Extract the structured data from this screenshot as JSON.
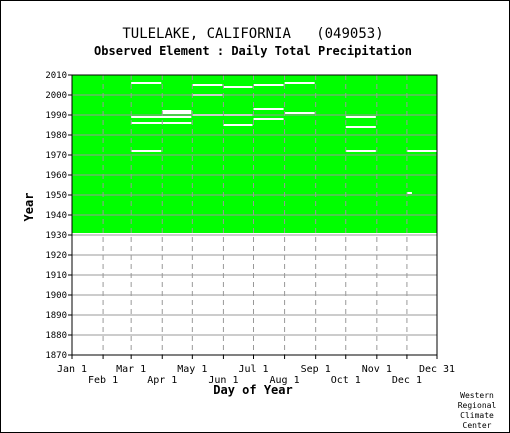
{
  "chart_data": {
    "type": "heatmap",
    "title": "TULELAKE, CALIFORNIA   (049053)",
    "subtitle": "Observed Element : Daily Total Precipitation",
    "xlabel": "Day of Year",
    "ylabel": "Year",
    "xlim": [
      1,
      365
    ],
    "ylim": [
      1870,
      2010
    ],
    "x_ticks_top_row": [
      {
        "label": "Jan 1",
        "day": 1
      },
      {
        "label": "Mar 1",
        "day": 60
      },
      {
        "label": "May 1",
        "day": 121
      },
      {
        "label": "Jul 1",
        "day": 182
      },
      {
        "label": "Sep 1",
        "day": 244
      },
      {
        "label": "Nov 1",
        "day": 305
      },
      {
        "label": "Dec 31",
        "day": 365
      }
    ],
    "x_ticks_bottom_row": [
      {
        "label": "Feb 1",
        "day": 32
      },
      {
        "label": "Apr 1",
        "day": 91
      },
      {
        "label": "Jun 1",
        "day": 152
      },
      {
        "label": "Aug 1",
        "day": 213
      },
      {
        "label": "Oct 1",
        "day": 274
      },
      {
        "label": "Dec 1",
        "day": 335
      }
    ],
    "y_ticks": [
      1870,
      1880,
      1890,
      1900,
      1910,
      1920,
      1930,
      1940,
      1950,
      1960,
      1970,
      1980,
      1990,
      2000,
      2010
    ],
    "grid": true,
    "data_color": "#00ff00",
    "missing_color": "#ffffff",
    "coverage": {
      "start_year": 1931,
      "end_year": 2010
    },
    "missing_segments": [
      {
        "year": 2006,
        "start_day": 60,
        "end_day": 90
      },
      {
        "year": 2005,
        "start_day": 121,
        "end_day": 151
      },
      {
        "year": 2004,
        "start_day": 152,
        "end_day": 181
      },
      {
        "year": 2005,
        "start_day": 182,
        "end_day": 212
      },
      {
        "year": 2006,
        "start_day": 213,
        "end_day": 243
      },
      {
        "year": 2000,
        "start_day": 121,
        "end_day": 151
      },
      {
        "year": 1993,
        "start_day": 182,
        "end_day": 212
      },
      {
        "year": 1992,
        "start_day": 91,
        "end_day": 120
      },
      {
        "year": 1991,
        "start_day": 91,
        "end_day": 120
      },
      {
        "year": 1991,
        "start_day": 213,
        "end_day": 243
      },
      {
        "year": 1990,
        "start_day": 121,
        "end_day": 181
      },
      {
        "year": 1989,
        "start_day": 60,
        "end_day": 120
      },
      {
        "year": 1989,
        "start_day": 274,
        "end_day": 304
      },
      {
        "year": 1988,
        "start_day": 182,
        "end_day": 212
      },
      {
        "year": 1986,
        "start_day": 60,
        "end_day": 120
      },
      {
        "year": 1985,
        "start_day": 152,
        "end_day": 181
      },
      {
        "year": 1984,
        "start_day": 274,
        "end_day": 304
      },
      {
        "year": 1972,
        "start_day": 60,
        "end_day": 90
      },
      {
        "year": 1972,
        "start_day": 274,
        "end_day": 304
      },
      {
        "year": 1972,
        "start_day": 335,
        "end_day": 365
      },
      {
        "year": 1951,
        "start_day": 335,
        "end_day": 340
      }
    ],
    "footer": [
      "Western",
      "Regional",
      "Climate",
      "Center"
    ]
  }
}
